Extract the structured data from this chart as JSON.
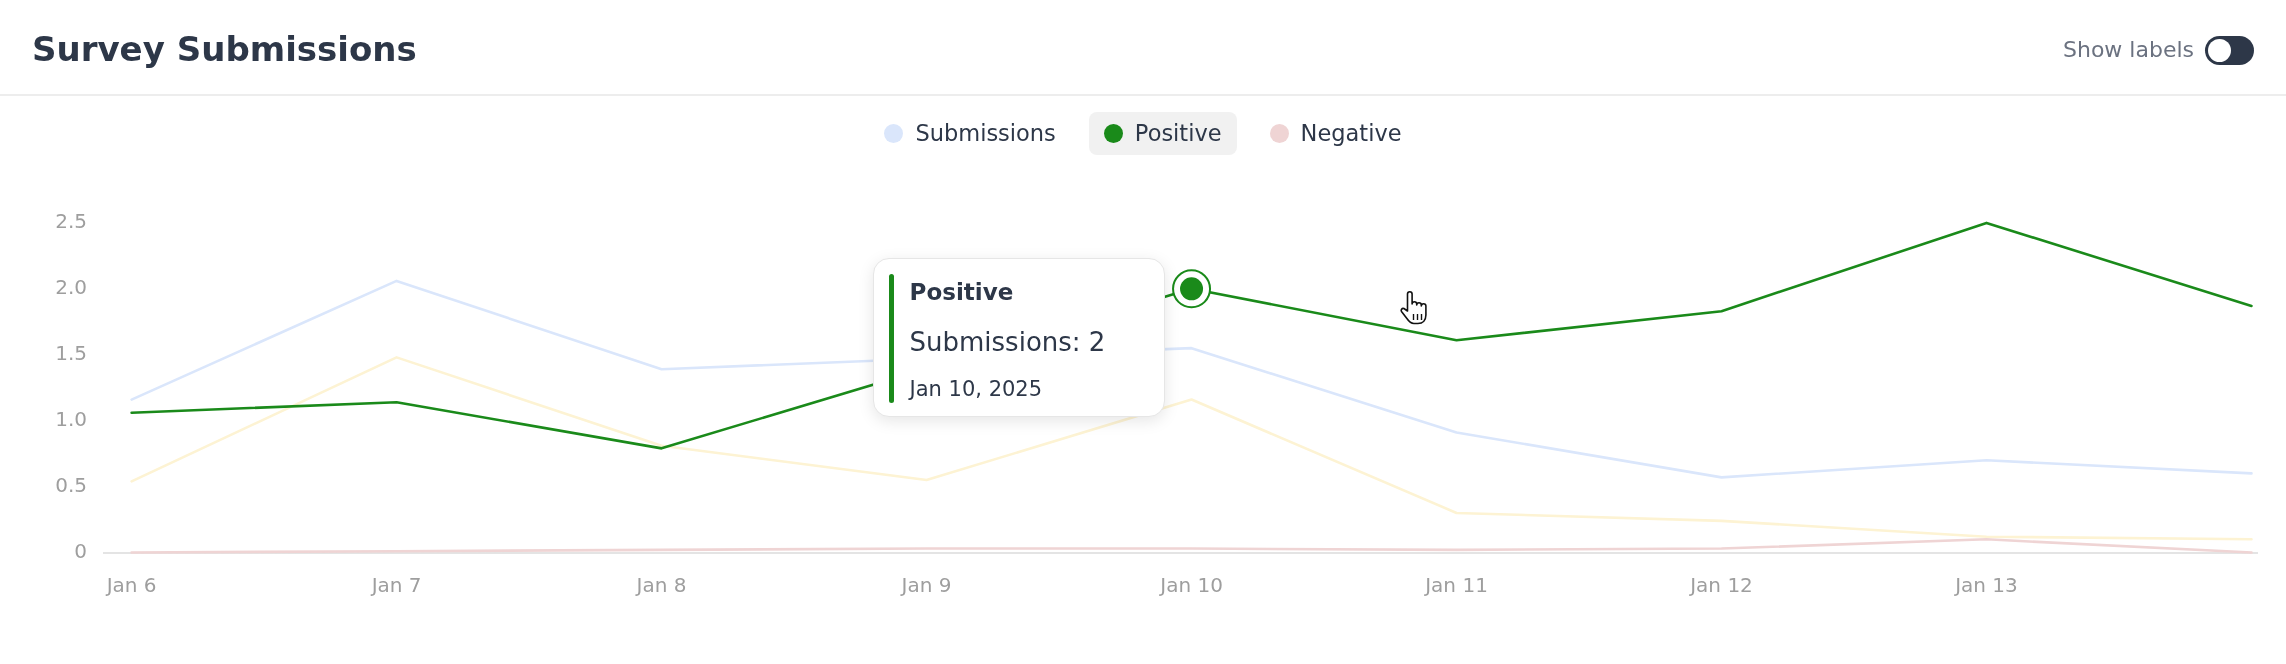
{
  "chart_data": {
    "type": "line",
    "title": "Survey Submissions",
    "x": [
      "2025-01-06",
      "2025-01-07",
      "2025-01-08",
      "2025-01-09",
      "2025-01-10",
      "2025-01-11",
      "2025-01-12",
      "2025-01-13",
      "2025-01-14"
    ],
    "series": [
      {
        "name": "Submissions",
        "color": "#dae6fb",
        "values": [
          1.16,
          2.06,
          1.39,
          null,
          1.55,
          0.91,
          0.57,
          0.7,
          0.6
        ]
      },
      {
        "name": "Positive",
        "color": "#1a8a1a",
        "values": [
          1.06,
          1.14,
          0.79,
          null,
          2,
          1.61,
          1.83,
          2.5,
          1.87
        ]
      },
      {
        "color": "#fdf3d3",
        "values": [
          0.54,
          1.48,
          0.81,
          0.55,
          1.16,
          0.3,
          0.24,
          0.12,
          0.1
        ]
      },
      {
        "name": "Negative",
        "color": "#efd4d4",
        "values": [
          0,
          0.01,
          0.02,
          0.03,
          0.03,
          0.02,
          0.03,
          0.1,
          0
        ]
      },
      {
        "type": "scatter",
        "color": "#1a8a1a",
        "marker": "circle",
        "x": [
          "2025-01-10"
        ],
        "values": [
          2
        ]
      }
    ],
    "xlim": [
      "2025-01-05T21:30",
      "2025-01-14T00:30"
    ],
    "xticks": [
      {
        "value": "2025-01-06",
        "label": "Jan 6"
      },
      {
        "value": "2025-01-07",
        "label": "Jan 7"
      },
      {
        "value": "2025-01-08",
        "label": "Jan 8"
      },
      {
        "value": "2025-01-09",
        "label": "Jan 9"
      },
      {
        "value": "2025-01-10",
        "label": "Jan 10"
      },
      {
        "value": "2025-01-11",
        "label": "Jan 11"
      },
      {
        "value": "2025-01-12",
        "label": "Jan 12"
      },
      {
        "value": "2025-01-13",
        "label": "Jan 13"
      }
    ],
    "ylim": [
      0,
      2.5
    ],
    "yticks": [
      0,
      0.5,
      {
        "value": 1,
        "label": "1.0"
      },
      1.5,
      {
        "value": 2,
        "label": "2.0"
      },
      2.5
    ],
    "legend": "top",
    "grid": false,
    "annotations": [
      "Show labels",
      "Positive",
      "Submissions: 2",
      "Jan 10, 2025"
    ]
  }
}
